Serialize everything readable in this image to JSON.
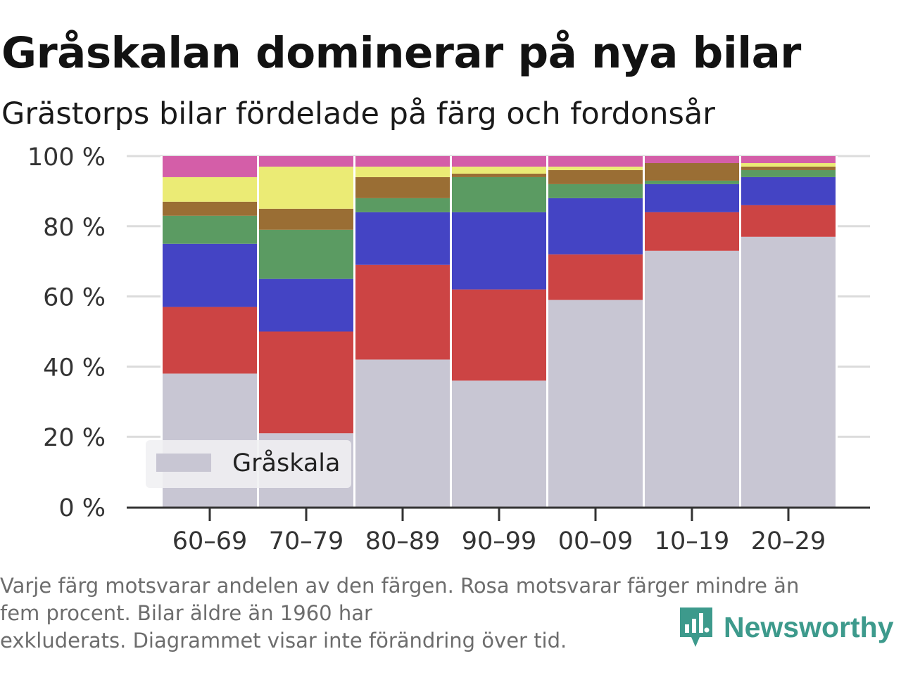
{
  "title": "Gråskalan dominerar på nya bilar",
  "subtitle": "Grästorps bilar fördelade på färg och fordonsår",
  "footnote": [
    "Varje färg motsvarar andelen av den färgen. Rosa motsvarar färger mindre än",
    "fem procent. Bilar äldre än 1960 har",
    "exkluderats. Diagrammet visar inte förändring över tid."
  ],
  "brand": {
    "name": "Newsworthy",
    "icon": "newsworthy-logo-icon",
    "color": "#3d9a8c"
  },
  "chart_data": {
    "type": "bar",
    "stacked": true,
    "categories": [
      "60–69",
      "70–79",
      "80–89",
      "90–99",
      "00–09",
      "10–19",
      "20–29"
    ],
    "y_ticks": [
      "0 %",
      "20 %",
      "40 %",
      "60 %",
      "80 %",
      "100 %"
    ],
    "ylim": [
      0,
      100
    ],
    "grid": true,
    "legend_position": "bottom-left",
    "series": [
      {
        "name": "Gråskala",
        "color": "#c8c6d3",
        "values": [
          38,
          21,
          42,
          36,
          59,
          73,
          77
        ]
      },
      {
        "color": "#cc4444",
        "values": [
          19,
          29,
          27,
          26,
          13,
          11,
          9
        ]
      },
      {
        "color": "#4444c4",
        "values": [
          18,
          15,
          15,
          22,
          16,
          8,
          8
        ]
      },
      {
        "color": "#5b9b62",
        "values": [
          8,
          14,
          4,
          10,
          4,
          1,
          2
        ]
      },
      {
        "color": "#9a6e34",
        "values": [
          4,
          6,
          6,
          1,
          4,
          5,
          1
        ]
      },
      {
        "color": "#ebeb75",
        "values": [
          7,
          12,
          3,
          2,
          1,
          0,
          1
        ]
      },
      {
        "color": "#d45ea8",
        "values": [
          6,
          3,
          3,
          3,
          3,
          2,
          2
        ]
      }
    ]
  }
}
